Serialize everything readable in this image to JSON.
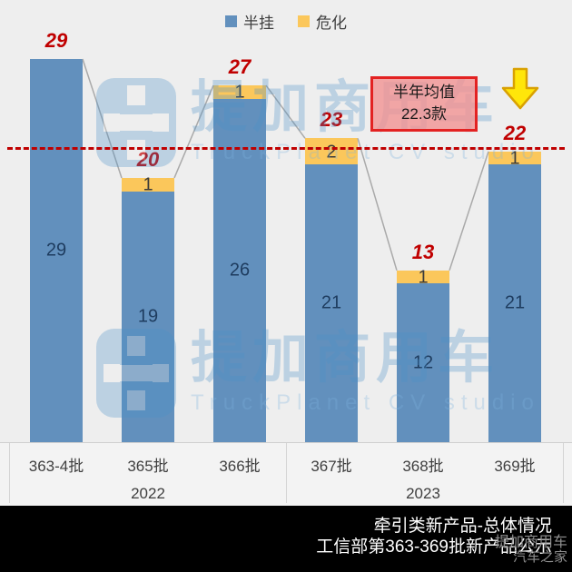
{
  "legend": {
    "items": [
      {
        "label": "半挂",
        "color": "#6290BD"
      },
      {
        "label": "危化",
        "color": "#FBC75B"
      }
    ]
  },
  "chart_data": {
    "type": "bar",
    "stacked": true,
    "title": "",
    "categories": [
      "363-4批",
      "365批",
      "366批",
      "367批",
      "368批",
      "369批"
    ],
    "series": [
      {
        "name": "半挂",
        "color": "#6290BD",
        "values": [
          29,
          19,
          26,
          21,
          12,
          21
        ]
      },
      {
        "name": "危化",
        "color": "#FBC75B",
        "values": [
          0,
          1,
          1,
          2,
          1,
          1
        ]
      }
    ],
    "totals": [
      29,
      20,
      27,
      23,
      13,
      22
    ],
    "year_groups": [
      {
        "label": "2022",
        "span": [
          0,
          2
        ]
      },
      {
        "label": "2023",
        "span": [
          3,
          5
        ]
      }
    ],
    "average_line": {
      "value": 22.3,
      "color": "#C00000",
      "style": "dashed"
    },
    "ylim": [
      0,
      29
    ],
    "grid": false,
    "legend_position": "top-center"
  },
  "annotation_box": {
    "line1": "半年均值",
    "line2": "22.3款"
  },
  "icons": {
    "down_arrow": "yellow-down-arrow"
  },
  "footer": {
    "line1": "牵引类新产品-总体情况",
    "line2": "工信部第363-369批新产品公示"
  },
  "watermarks": {
    "brand_cn": "提加商用车",
    "brand_en": "TruckPlanet CV studio",
    "corner_line1": "提加商用车",
    "corner_line2": "汽车之家"
  },
  "colors": {
    "background": "#EEEEEE",
    "bar_blue": "#6290BD",
    "bar_yellow": "#FBC75B",
    "accent_red": "#C00000",
    "footer_black": "#000000"
  }
}
